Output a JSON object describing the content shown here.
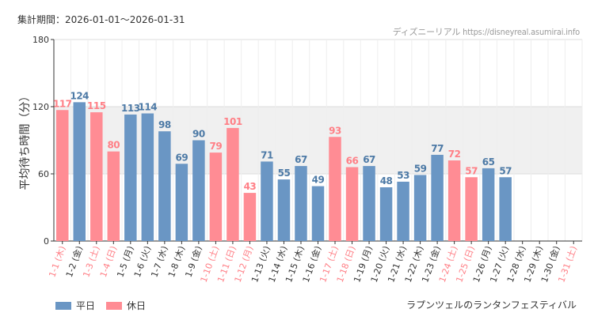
{
  "header": {
    "period_label": "集計期間：2026-01-01～2026-01-31",
    "source_label": "ディズニーリアル https://disneyreal.asumirai.info"
  },
  "event_name": "ラプンツェルのランタンフェスティバル",
  "legend": {
    "weekday_label": "平日",
    "holiday_label": "休日"
  },
  "colors": {
    "weekday": "#6a96c4",
    "holiday": "#ff8c94",
    "weekday_text": "#4d7aa6",
    "holiday_text": "#ff7f86",
    "highlight_band": "#f0f0f0",
    "grid": "#dddddd",
    "axis": "#333333"
  },
  "chart_data": {
    "type": "bar",
    "title": "",
    "xlabel": "",
    "ylabel": "平均待ち時間（分）",
    "ylim": [
      0,
      180
    ],
    "yticks": [
      0,
      60,
      120,
      180
    ],
    "highlight_band": [
      60,
      120
    ],
    "categories": [
      "1-1 (木)",
      "1-2 (金)",
      "1-3 (土)",
      "1-4 (日)",
      "1-5 (月)",
      "1-6 (火)",
      "1-7 (水)",
      "1-8 (木)",
      "1-9 (金)",
      "1-10 (土)",
      "1-11 (日)",
      "1-12 (月)",
      "1-13 (火)",
      "1-14 (水)",
      "1-15 (木)",
      "1-16 (金)",
      "1-17 (土)",
      "1-18 (日)",
      "1-19 (月)",
      "1-20 (火)",
      "1-21 (水)",
      "1-22 (木)",
      "1-23 (金)",
      "1-24 (土)",
      "1-25 (日)",
      "1-26 (月)",
      "1-27 (火)",
      "1-28 (水)",
      "1-29 (木)",
      "1-30 (金)",
      "1-31 (土)"
    ],
    "values": [
      117,
      124,
      115,
      80,
      113,
      114,
      98,
      69,
      90,
      79,
      101,
      43,
      71,
      55,
      67,
      49,
      93,
      66,
      67,
      48,
      53,
      59,
      77,
      72,
      57,
      65,
      57,
      null,
      null,
      null,
      null
    ],
    "day_type": [
      "holiday",
      "weekday",
      "holiday",
      "holiday",
      "weekday",
      "weekday",
      "weekday",
      "weekday",
      "weekday",
      "holiday",
      "holiday",
      "holiday",
      "weekday",
      "weekday",
      "weekday",
      "weekday",
      "holiday",
      "holiday",
      "weekday",
      "weekday",
      "weekday",
      "weekday",
      "weekday",
      "holiday",
      "holiday",
      "weekday",
      "weekday",
      "weekday",
      "weekday",
      "weekday",
      "holiday"
    ]
  }
}
